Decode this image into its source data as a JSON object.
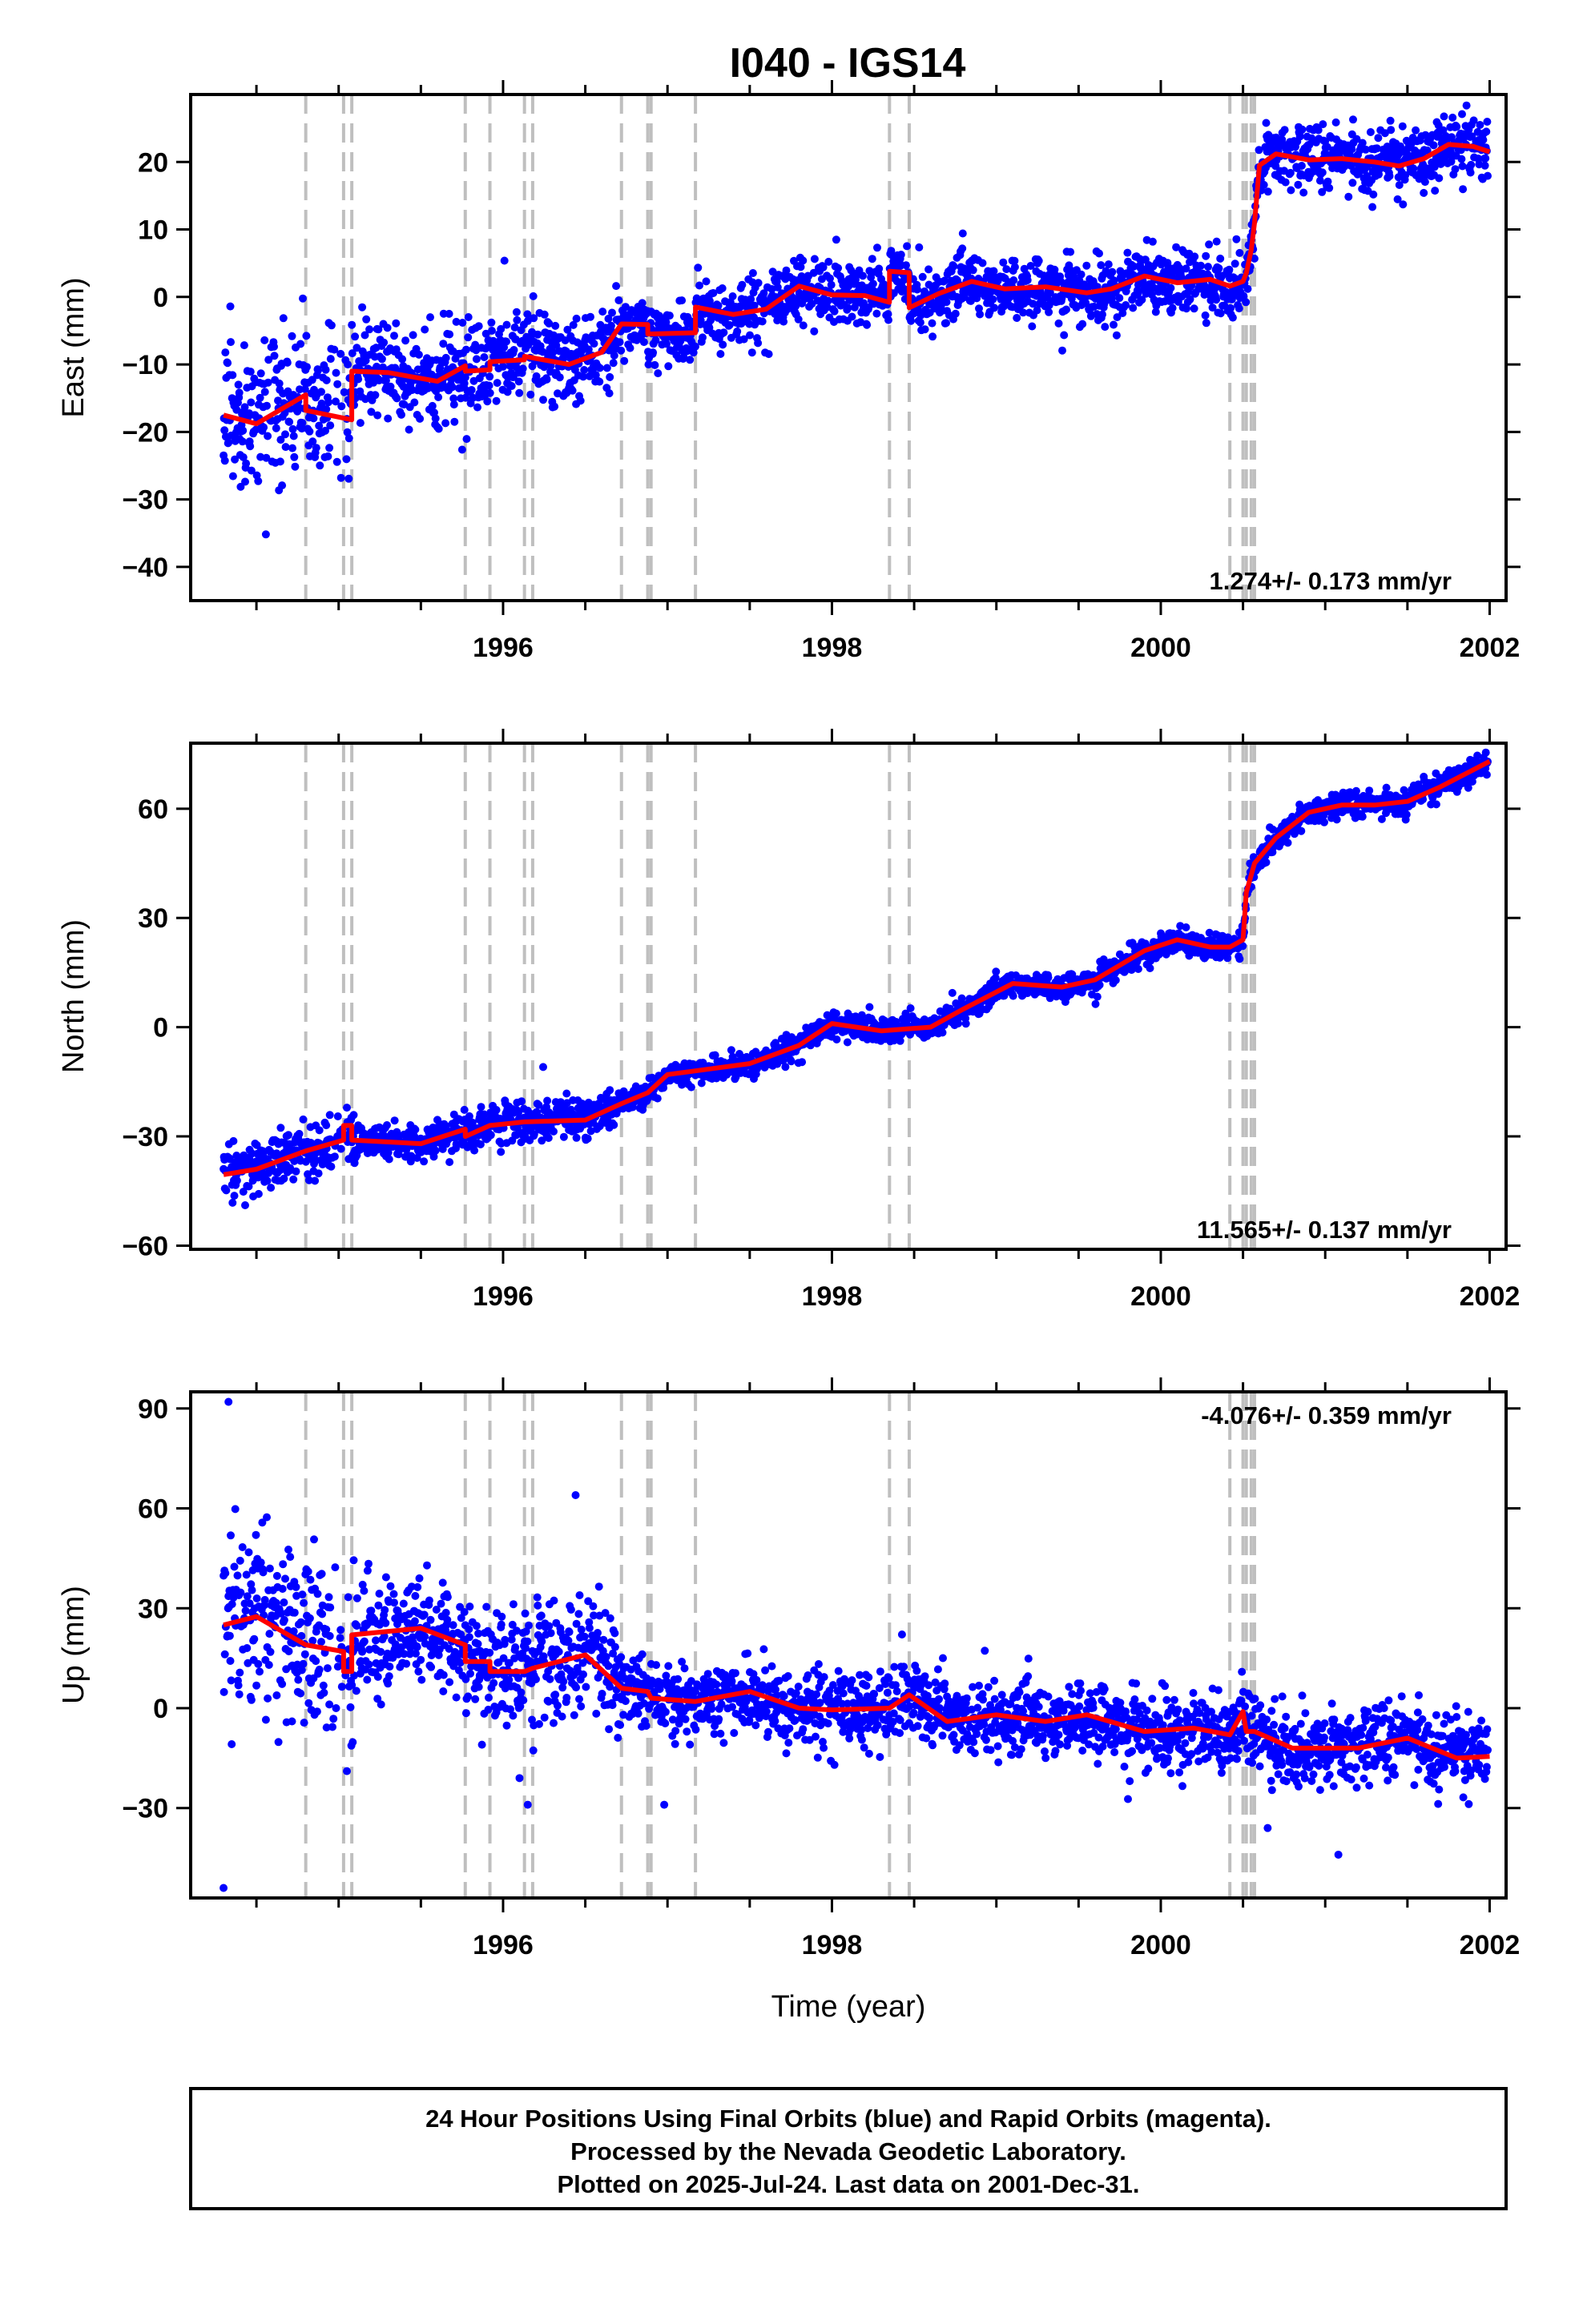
{
  "title": "I040 - IGS14",
  "colors": {
    "final_orbits": "#0000ff",
    "model": "#ff0000",
    "steps": "#bfbfbf",
    "frame": "#000000"
  },
  "footer": {
    "line1": "24 Hour Positions Using Final Orbits (blue) and Rapid Orbits (magenta).",
    "line2": "Processed by the Nevada Geodetic Laboratory.",
    "line3": "Plotted on 2025-Jul-24. Last data on 2001-Dec-31."
  },
  "chart_data": [
    {
      "type": "scatter",
      "ylabel": "East (mm)",
      "xlabel": "",
      "xlim": [
        1994.1,
        2002.1
      ],
      "ylim": [
        -45,
        30
      ],
      "xticks": [
        1996,
        1998,
        2000,
        2002
      ],
      "yticks": [
        -40,
        -30,
        -20,
        -10,
        0,
        10,
        20
      ],
      "rate": "1.274+/- 0.173 mm/yr",
      "rate_position": "bottom-right",
      "steps": [
        1994.8,
        1995.03,
        1995.08,
        1995.77,
        1995.92,
        1996.13,
        1996.18,
        1996.72,
        1996.88,
        1996.9,
        1997.17,
        1998.35,
        1998.47,
        2000.42,
        2000.5,
        2000.52,
        2000.55,
        2000.57
      ],
      "model": [
        [
          1994.3,
          -17.5
        ],
        [
          1994.5,
          -18.8
        ],
        [
          1994.8,
          -14.5
        ],
        [
          1994.8,
          -16.8
        ],
        [
          1995.0,
          -17.8
        ],
        [
          1995.08,
          -18.2
        ],
        [
          1995.08,
          -11
        ],
        [
          1995.3,
          -11.2
        ],
        [
          1995.6,
          -12.5
        ],
        [
          1995.77,
          -10.2
        ],
        [
          1995.77,
          -11
        ],
        [
          1995.92,
          -10.8
        ],
        [
          1995.92,
          -9.6
        ],
        [
          1996.13,
          -9.3
        ],
        [
          1996.13,
          -8.8
        ],
        [
          1996.4,
          -10
        ],
        [
          1996.6,
          -8.2
        ],
        [
          1996.72,
          -4
        ],
        [
          1996.88,
          -4.1
        ],
        [
          1996.88,
          -5.5
        ],
        [
          1997.17,
          -5.3
        ],
        [
          1997.17,
          -1.5
        ],
        [
          1997.4,
          -2.6
        ],
        [
          1997.6,
          -1.8
        ],
        [
          1997.8,
          1.6
        ],
        [
          1998.0,
          0.3
        ],
        [
          1998.2,
          0.2
        ],
        [
          1998.35,
          -0.8
        ],
        [
          1998.35,
          3.8
        ],
        [
          1998.47,
          3.6
        ],
        [
          1998.47,
          -1.6
        ],
        [
          1998.65,
          0.5
        ],
        [
          1998.85,
          2.3
        ],
        [
          1999.05,
          1.2
        ],
        [
          1999.3,
          1.5
        ],
        [
          1999.55,
          0.6
        ],
        [
          1999.7,
          1.2
        ],
        [
          1999.9,
          3.1
        ],
        [
          2000.1,
          2.1
        ],
        [
          2000.3,
          2.6
        ],
        [
          2000.42,
          1.6
        ],
        [
          2000.5,
          2.3
        ],
        [
          2000.52,
          3.5
        ],
        [
          2000.55,
          7
        ],
        [
          2000.57,
          11
        ],
        [
          2000.6,
          19.5
        ],
        [
          2000.7,
          21.2
        ],
        [
          2000.9,
          20.3
        ],
        [
          2001.1,
          20.5
        ],
        [
          2001.3,
          20
        ],
        [
          2001.45,
          19.4
        ],
        [
          2001.6,
          20.5
        ],
        [
          2001.75,
          22.6
        ],
        [
          2001.9,
          22.3
        ],
        [
          2002.0,
          21.5
        ]
      ]
    },
    {
      "type": "scatter",
      "ylabel": "North (mm)",
      "xlabel": "",
      "xlim": [
        1994.1,
        2002.1
      ],
      "ylim": [
        -61,
        78
      ],
      "xticks": [
        1996,
        1998,
        2000,
        2002
      ],
      "yticks": [
        -60,
        -30,
        0,
        30,
        60
      ],
      "rate": "11.565+/- 0.137 mm/yr",
      "rate_position": "bottom-right",
      "steps": [
        1994.8,
        1995.03,
        1995.08,
        1995.77,
        1995.92,
        1996.13,
        1996.18,
        1996.72,
        1996.88,
        1996.9,
        1997.17,
        1998.35,
        1998.47,
        2000.42,
        2000.5,
        2000.52,
        2000.55,
        2000.57
      ],
      "model": [
        [
          1994.3,
          -40.5
        ],
        [
          1994.5,
          -39
        ],
        [
          1994.8,
          -34
        ],
        [
          1995.03,
          -31
        ],
        [
          1995.03,
          -27
        ],
        [
          1995.08,
          -27
        ],
        [
          1995.08,
          -31
        ],
        [
          1995.5,
          -32
        ],
        [
          1995.77,
          -28
        ],
        [
          1995.77,
          -30
        ],
        [
          1995.92,
          -27
        ],
        [
          1996.13,
          -26
        ],
        [
          1996.5,
          -25.5
        ],
        [
          1996.72,
          -21
        ],
        [
          1996.88,
          -18
        ],
        [
          1997.0,
          -13
        ],
        [
          1997.17,
          -12
        ],
        [
          1997.5,
          -10
        ],
        [
          1997.8,
          -5
        ],
        [
          1998.0,
          1
        ],
        [
          1998.3,
          -1
        ],
        [
          1998.6,
          0
        ],
        [
          1998.8,
          5
        ],
        [
          1999.1,
          12
        ],
        [
          1999.4,
          11
        ],
        [
          1999.6,
          13
        ],
        [
          1999.9,
          21
        ],
        [
          2000.1,
          24
        ],
        [
          2000.3,
          22
        ],
        [
          2000.42,
          22
        ],
        [
          2000.5,
          24
        ],
        [
          2000.52,
          37
        ],
        [
          2000.57,
          45
        ],
        [
          2000.7,
          52
        ],
        [
          2000.9,
          59
        ],
        [
          2001.1,
          61
        ],
        [
          2001.3,
          61
        ],
        [
          2001.5,
          62
        ],
        [
          2001.7,
          66
        ],
        [
          2002.0,
          73
        ]
      ]
    },
    {
      "type": "scatter",
      "ylabel": "Up (mm)",
      "xlabel": "Time (year)",
      "xlim": [
        1994.1,
        2002.1
      ],
      "ylim": [
        -57,
        95
      ],
      "xticks": [
        1996,
        1998,
        2000,
        2002
      ],
      "yticks": [
        -30,
        0,
        30,
        60,
        90
      ],
      "rate": "-4.076+/- 0.359 mm/yr",
      "rate_position": "top-right",
      "steps": [
        1994.8,
        1995.03,
        1995.08,
        1995.77,
        1995.92,
        1996.13,
        1996.18,
        1996.72,
        1996.88,
        1996.9,
        1997.17,
        1998.35,
        1998.47,
        2000.42,
        2000.5,
        2000.52,
        2000.55,
        2000.57
      ],
      "model": [
        [
          1994.3,
          25
        ],
        [
          1994.5,
          27.5
        ],
        [
          1994.8,
          19
        ],
        [
          1995.03,
          17
        ],
        [
          1995.03,
          11
        ],
        [
          1995.08,
          11
        ],
        [
          1995.08,
          22
        ],
        [
          1995.5,
          24
        ],
        [
          1995.77,
          19
        ],
        [
          1995.77,
          14
        ],
        [
          1995.92,
          14
        ],
        [
          1995.92,
          11
        ],
        [
          1996.13,
          11
        ],
        [
          1996.18,
          12
        ],
        [
          1996.5,
          16
        ],
        [
          1996.72,
          6
        ],
        [
          1996.88,
          5
        ],
        [
          1996.9,
          3
        ],
        [
          1997.17,
          2
        ],
        [
          1997.5,
          5
        ],
        [
          1997.8,
          0
        ],
        [
          1998.0,
          -0.5
        ],
        [
          1998.35,
          0
        ],
        [
          1998.47,
          4
        ],
        [
          1998.7,
          -4
        ],
        [
          1999.0,
          -2
        ],
        [
          1999.3,
          -4
        ],
        [
          1999.55,
          -2
        ],
        [
          1999.9,
          -7
        ],
        [
          2000.2,
          -6
        ],
        [
          2000.42,
          -8
        ],
        [
          2000.5,
          -1
        ],
        [
          2000.52,
          -7
        ],
        [
          2000.57,
          -7
        ],
        [
          2000.8,
          -12
        ],
        [
          2001.2,
          -12
        ],
        [
          2001.5,
          -9
        ],
        [
          2001.8,
          -15
        ],
        [
          2002.0,
          -14.5
        ]
      ],
      "outliers": [
        [
          1994.33,
          92
        ],
        [
          1994.3,
          -54
        ],
        [
          2000.65,
          -36
        ],
        [
          2001.08,
          -44
        ],
        [
          1996.1,
          -21
        ],
        [
          1996.15,
          -29
        ],
        [
          1996.98,
          -29
        ]
      ]
    }
  ]
}
